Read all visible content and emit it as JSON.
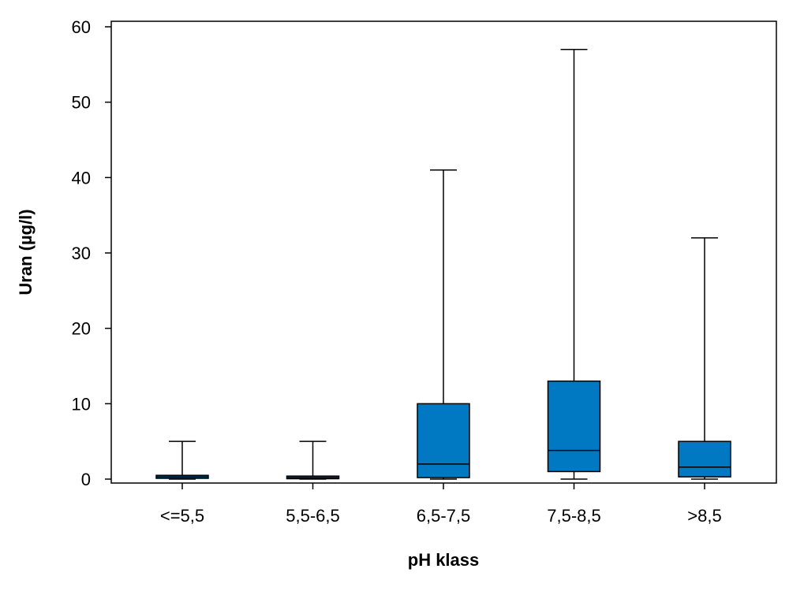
{
  "chart_data": {
    "type": "box",
    "title": "",
    "xlabel": "pH klass",
    "ylabel": "Uran (µg/l)",
    "ylim": [
      0,
      60
    ],
    "yticks": [
      0,
      10,
      20,
      30,
      40,
      50,
      60
    ],
    "categories": [
      "<=5,5",
      "5,5-6,5",
      "6,5-7,5",
      "7,5-8,5",
      ">8,5"
    ],
    "boxes": [
      {
        "min": 0.0,
        "q1": 0.1,
        "median": 0.3,
        "q3": 0.5,
        "max": 5
      },
      {
        "min": 0.0,
        "q1": 0.05,
        "median": 0.2,
        "q3": 0.4,
        "max": 5
      },
      {
        "min": 0.0,
        "q1": 0.2,
        "median": 2.0,
        "q3": 10,
        "max": 41
      },
      {
        "min": 0.0,
        "q1": 1.0,
        "median": 3.8,
        "q3": 13,
        "max": 57
      },
      {
        "min": 0.0,
        "q1": 0.3,
        "median": 1.6,
        "q3": 5,
        "max": 32
      }
    ],
    "grid": false,
    "legend": "none",
    "box_color": "#0079c2"
  }
}
